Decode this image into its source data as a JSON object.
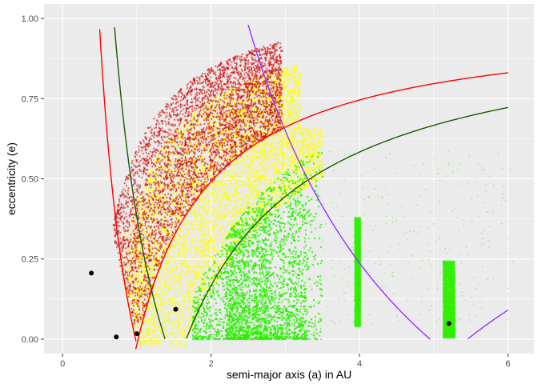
{
  "chart_data": {
    "type": "scatter",
    "title": "",
    "xlabel": "semi-major axis (a) in AU",
    "ylabel": "eccentricity (e)",
    "xlim": [
      -0.25,
      6.35
    ],
    "ylim": [
      -0.045,
      1.045
    ],
    "x_ticks": [
      0,
      2,
      4,
      6
    ],
    "x_tick_labels": [
      "0",
      "2",
      "4",
      "6"
    ],
    "y_ticks": [
      0,
      0.25,
      0.5,
      0.75,
      1.0
    ],
    "y_tick_labels": [
      "0.00",
      "0.25",
      "0.50",
      "0.75",
      "1.00"
    ],
    "grid": true,
    "legend": "none",
    "colors": {
      "panel": "#EBEBEB",
      "grid_major": "#FFFFFF",
      "asteroid_green": "#33EE00",
      "asteroid_yellow": "#FFFF00",
      "asteroid_red": "#CC0000",
      "curve_red": "#FF0000",
      "curve_darkgreen": "#1A5C00",
      "curve_purple": "#9933FF",
      "planet_point": "#000000"
    },
    "planets": [
      {
        "x": 0.387,
        "y": 0.206
      },
      {
        "x": 0.723,
        "y": 0.007
      },
      {
        "x": 1.0,
        "y": 0.017
      },
      {
        "x": 1.524,
        "y": 0.093
      },
      {
        "x": 5.203,
        "y": 0.049
      }
    ],
    "curves": [
      {
        "kind": "perihelion",
        "a_ref": 1.017,
        "x_range": [
          0.52,
          6.0
        ],
        "color": "curve_red"
      },
      {
        "kind": "aphelion",
        "a_ref": 0.983,
        "x_range": [
          0.5,
          0.99
        ],
        "color": "curve_red"
      },
      {
        "kind": "perihelion",
        "a_ref": 1.666,
        "x_range": [
          1.67,
          6.0
        ],
        "color": "curve_darkgreen"
      },
      {
        "kind": "aphelion",
        "a_ref": 1.381,
        "x_range": [
          0.7,
          1.38
        ],
        "color": "curve_darkgreen"
      },
      {
        "kind": "aphelion",
        "a_ref": 4.95,
        "x_range": [
          2.5,
          4.95
        ],
        "color": "curve_purple"
      },
      {
        "kind": "perihelion",
        "a_ref": 5.455,
        "x_range": [
          5.46,
          6.0
        ],
        "color": "curve_purple"
      }
    ],
    "regions": [
      {
        "name_hint": "main-belt",
        "color": "asteroid_green",
        "shape": "band",
        "x_range": [
          1.7,
          3.5
        ],
        "e_max_fn": "min(0.62, 1-1.666/a)",
        "density": "very high"
      },
      {
        "name_hint": "hilda-group",
        "color": "asteroid_green",
        "shape": "cluster",
        "x_center": 3.97,
        "y_range": [
          0.05,
          0.38
        ]
      },
      {
        "name_hint": "jupiter-trojans",
        "color": "asteroid_green",
        "shape": "cluster",
        "x_center": 5.2,
        "y_range": [
          0.01,
          0.25
        ]
      },
      {
        "name_hint": "mars-crossers-apollo-amor",
        "color": "asteroid_yellow",
        "shape": "band",
        "x_range": [
          0.55,
          3.4
        ],
        "e_range": [
          0.0,
          0.92
        ]
      },
      {
        "name_hint": "earth-crossers",
        "color": "asteroid_red",
        "shape": "scatter",
        "x_range": [
          0.65,
          3.0
        ],
        "e_range": [
          0.05,
          0.95
        ]
      }
    ],
    "stray_points_green": [
      [
        4.2,
        0.47
      ],
      [
        5.5,
        0.44
      ],
      [
        4.6,
        0.33
      ],
      [
        5.0,
        0.56
      ],
      [
        5.8,
        0.48
      ],
      [
        4.4,
        0.58
      ],
      [
        4.9,
        0.3
      ],
      [
        5.6,
        0.55
      ]
    ]
  }
}
